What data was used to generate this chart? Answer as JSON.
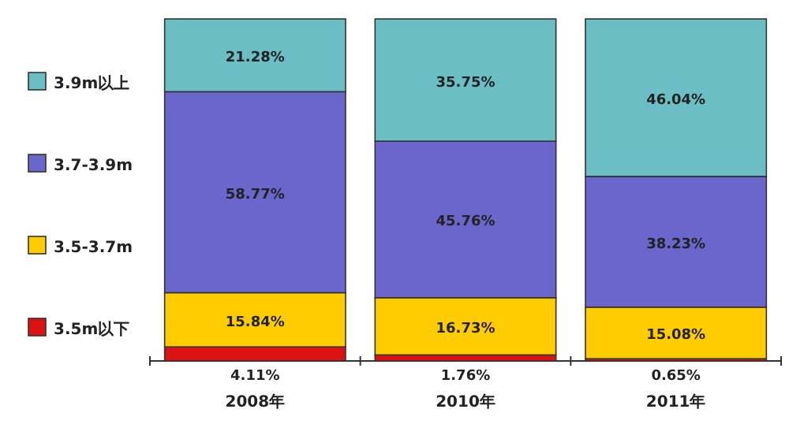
{
  "chart_data": {
    "type": "bar",
    "stacked": true,
    "legend": "left",
    "categories": [
      "2008年",
      "2010年",
      "2011年"
    ],
    "series": [
      {
        "name": "3.5m以下",
        "color": "#dd1111",
        "values": [
          4.11,
          1.76,
          0.65
        ],
        "value_labels": [
          "4.11%",
          "1.76%",
          "0.65%"
        ]
      },
      {
        "name": "3.5-3.7m",
        "color": "#ffcc00",
        "values": [
          15.84,
          16.73,
          15.08
        ],
        "value_labels": [
          "15.84%",
          "16.73%",
          "15.08%"
        ]
      },
      {
        "name": "3.7-3.9m",
        "color": "#6b66cc",
        "values": [
          58.77,
          45.76,
          38.23
        ],
        "value_labels": [
          "58.77%",
          "45.76%",
          "38.23%"
        ]
      },
      {
        "name": "3.9m以上",
        "color": "#6bbfc4",
        "values": [
          21.28,
          35.75,
          46.04
        ],
        "value_labels": [
          "21.28%",
          "35.75%",
          "46.04%"
        ]
      }
    ]
  }
}
